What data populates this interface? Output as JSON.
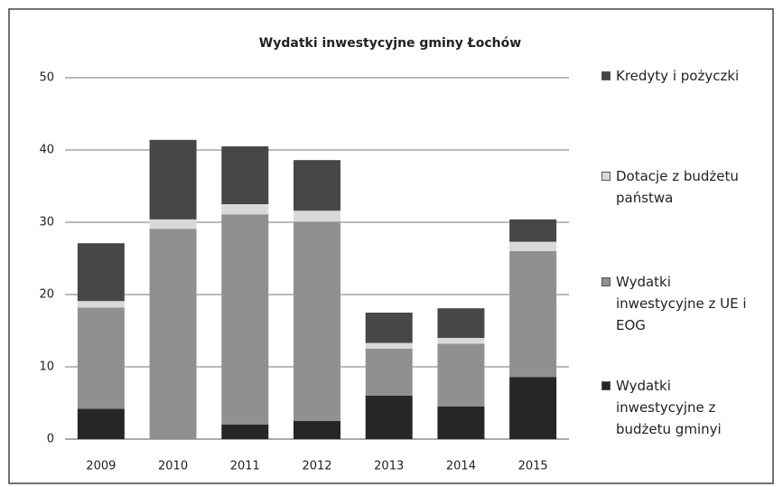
{
  "chart_data": {
    "type": "stacked_bar",
    "title": "Wydatki inwestycyjne gminy Łochów",
    "categories": [
      "2009",
      "2010",
      "2011",
      "2012",
      "2013",
      "2014",
      "2015"
    ],
    "series": [
      {
        "name": "Wydatki inwestycyjne z budżetu gminyi",
        "color": "#262626",
        "values": [
          4.2,
          0,
          2.0,
          2.5,
          6.0,
          4.5,
          8.6
        ]
      },
      {
        "name": "Wydatki inwestycyjne z UE i EOG",
        "color": "#909090",
        "values": [
          14.0,
          29.1,
          29.1,
          27.6,
          6.5,
          8.7,
          17.4
        ]
      },
      {
        "name": "Dotacje z budżetu państwa",
        "color": "#d9d9d9",
        "values": [
          0.9,
          1.3,
          1.4,
          1.5,
          0.8,
          0.8,
          1.3
        ]
      },
      {
        "name": "Kredyty i pożyczki",
        "color": "#474747",
        "values": [
          8.0,
          11.0,
          8.0,
          7.0,
          4.2,
          4.1,
          3.1
        ]
      }
    ],
    "ylim": [
      0,
      50
    ],
    "yticks": [
      0,
      10,
      20,
      30,
      40,
      50
    ],
    "grid": true
  }
}
